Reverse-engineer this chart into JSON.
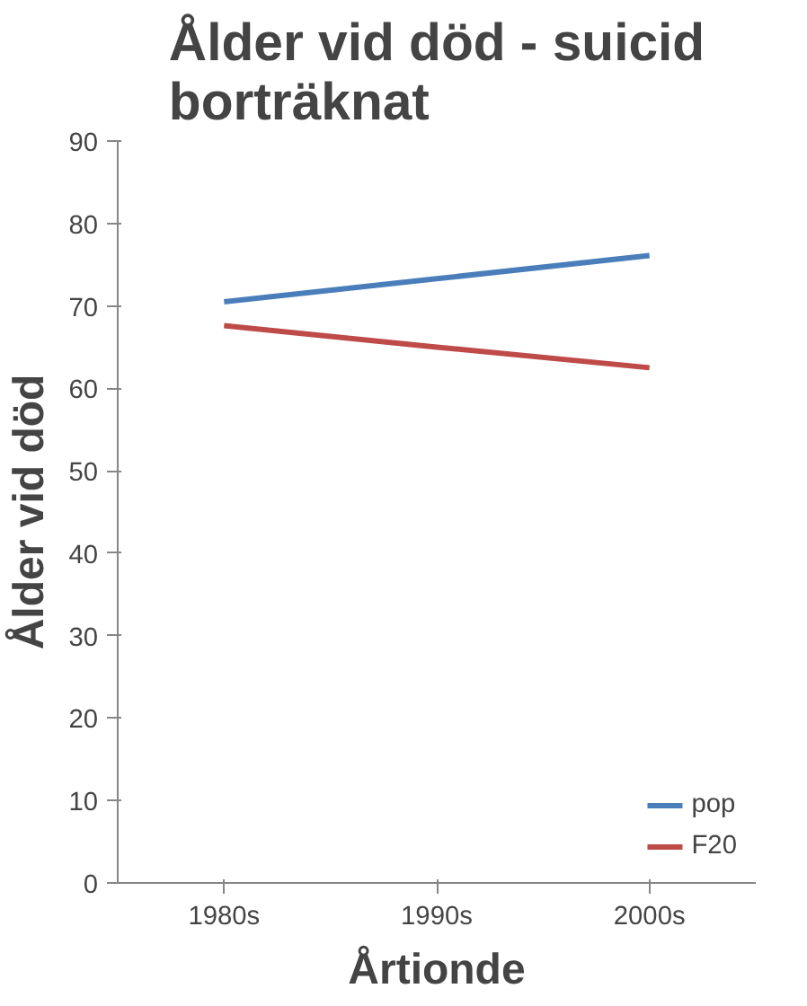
{
  "chart_data": {
    "type": "line",
    "title": "Ålder vid död - suicid borträknat",
    "xlabel": "Årtionde",
    "ylabel": "Ålder vid död",
    "categories": [
      "1980s",
      "1990s",
      "2000s"
    ],
    "series": [
      {
        "name": "pop",
        "color": "#4a7ebb",
        "values": [
          70.5,
          73.3,
          76.1
        ]
      },
      {
        "name": "F20",
        "color": "#be4b48",
        "values": [
          67.6,
          65.0,
          62.5
        ]
      }
    ],
    "ylim": [
      0,
      90
    ],
    "yticks": [
      0,
      10,
      20,
      30,
      40,
      50,
      60,
      70,
      80,
      90
    ],
    "grid": false,
    "legend": "bottom right",
    "marker": "none",
    "line_style": "solid"
  }
}
